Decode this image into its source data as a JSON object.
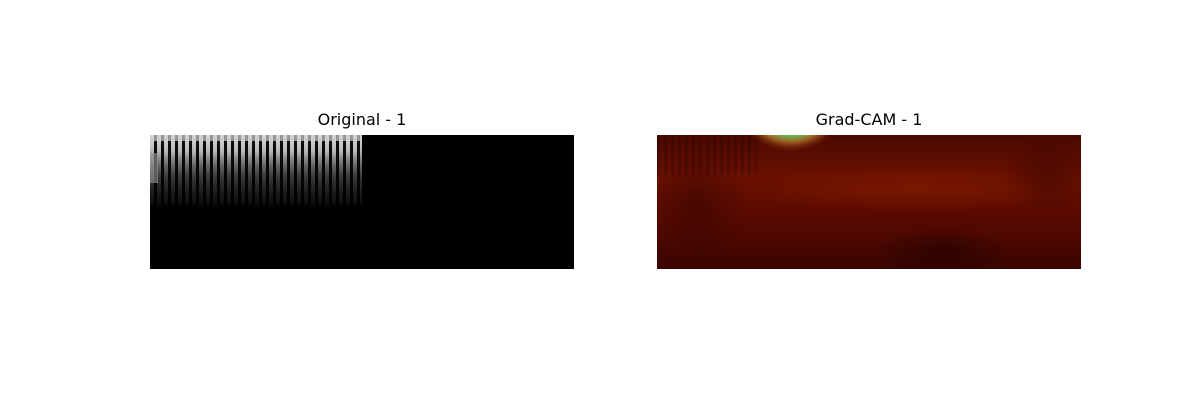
{
  "panels": [
    {
      "title": "Original - 1",
      "kind": "grayscale-spectrogram"
    },
    {
      "title": "Grad-CAM - 1",
      "kind": "heatmap-overlay"
    }
  ],
  "colors": {
    "background": "#ffffff",
    "grayscale_dark": "#000000",
    "grayscale_light": "#e0e0e0",
    "heatmap_base": "#5a0a00",
    "heatmap_hot": "#1a0060",
    "heatmap_ring": "#3fbf7f"
  }
}
